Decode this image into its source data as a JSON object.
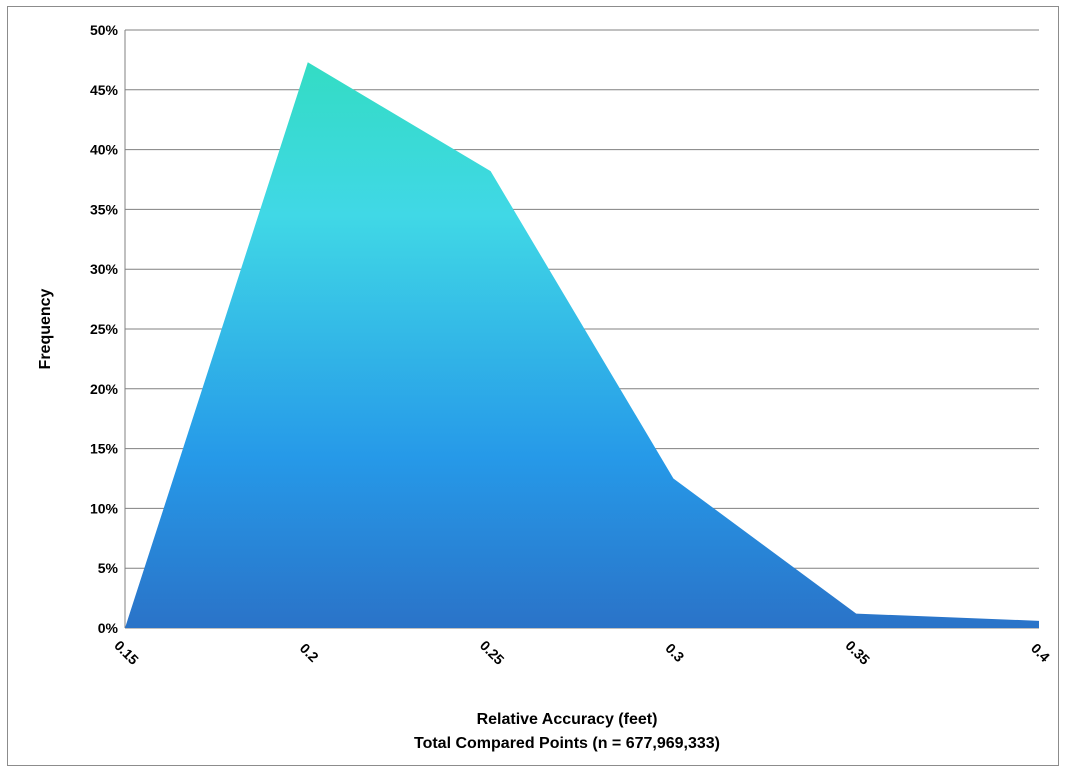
{
  "chart_data": {
    "type": "area",
    "title": "",
    "xlabel": "Relative Accuracy (feet)",
    "xlabel_line2": "Total Compared Points (n = 677,969,333)",
    "ylabel": "Frequency",
    "x": [
      "0.15",
      "0.2",
      "0.25",
      "0.3",
      "0.35",
      "0.4"
    ],
    "values": [
      0.0,
      47.3,
      38.2,
      12.5,
      1.2,
      0.6
    ],
    "ylim": [
      0,
      50
    ],
    "yticks": [
      "0%",
      "5%",
      "10%",
      "15%",
      "20%",
      "25%",
      "30%",
      "35%",
      "40%",
      "45%",
      "50%"
    ],
    "grid": true,
    "legend": "none",
    "colors": {
      "fill_top": "#33dcc4",
      "fill_mid": "#40d8e6",
      "fill_low": "#2699e8",
      "fill_bottom": "#2a73c8",
      "grid": "#808080"
    }
  }
}
